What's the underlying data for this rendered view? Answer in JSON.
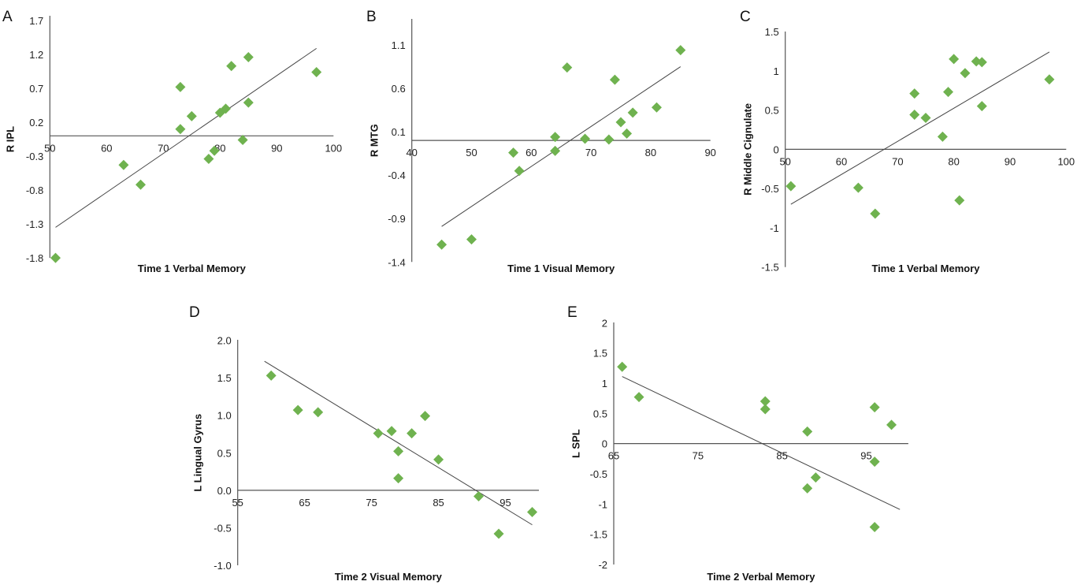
{
  "marker_color": "#6fb24f",
  "chart_data": [
    {
      "panel": "A",
      "type": "scatter",
      "xlabel": "Time 1 Verbal Memory",
      "ylabel": "R IPL",
      "xlim": [
        50,
        100
      ],
      "ylim": [
        -1.8,
        1.7
      ],
      "xticks": [
        "50",
        "60",
        "70",
        "80",
        "90",
        "100"
      ],
      "yticks": [
        "1.7",
        "1.2",
        "0.7",
        "0.2",
        "-0.3",
        "-0.8",
        "-1.3",
        "-1.8"
      ],
      "points": [
        [
          51,
          -1.8
        ],
        [
          63,
          -0.43
        ],
        [
          66,
          -0.72
        ],
        [
          73,
          0.72
        ],
        [
          73,
          0.1
        ],
        [
          75,
          0.29
        ],
        [
          78,
          -0.34
        ],
        [
          79,
          -0.22
        ],
        [
          80,
          0.34
        ],
        [
          81,
          0.4
        ],
        [
          82,
          1.03
        ],
        [
          84,
          -0.06
        ],
        [
          85,
          1.16
        ],
        [
          85,
          0.49
        ],
        [
          97,
          0.94
        ]
      ],
      "trendline": [
        [
          51,
          -1.35
        ],
        [
          97,
          1.29
        ]
      ]
    },
    {
      "panel": "B",
      "type": "scatter",
      "xlabel": "Time 1 Visual Memory",
      "ylabel": "R MTG",
      "xlim": [
        40,
        90
      ],
      "ylim": [
        -1.4,
        1.4
      ],
      "xticks": [
        "40",
        "50",
        "60",
        "70",
        "80",
        "90"
      ],
      "yticks": [
        "1.1",
        "0.6",
        "0.1",
        "-0.4",
        "-0.9",
        "-1.4"
      ],
      "points": [
        [
          45,
          -1.2
        ],
        [
          50,
          -1.14
        ],
        [
          57,
          -0.14
        ],
        [
          58,
          -0.35
        ],
        [
          64,
          0.04
        ],
        [
          64,
          -0.12
        ],
        [
          66,
          0.84
        ],
        [
          69,
          0.02
        ],
        [
          73,
          0.01
        ],
        [
          74,
          0.7
        ],
        [
          75,
          0.21
        ],
        [
          76,
          0.08
        ],
        [
          77,
          0.32
        ],
        [
          81,
          0.38
        ],
        [
          85,
          1.04
        ]
      ],
      "trendline": [
        [
          45,
          -0.99
        ],
        [
          85,
          0.85
        ]
      ]
    },
    {
      "panel": "C",
      "type": "scatter",
      "xlabel": "Time 1 Verbal Memory",
      "ylabel": "R Middle Cignulate",
      "xlim": [
        50,
        100
      ],
      "ylim": [
        -1.5,
        1.5
      ],
      "xticks": [
        "50",
        "60",
        "70",
        "80",
        "90",
        "100"
      ],
      "yticks": [
        "1.5",
        "1",
        "0.5",
        "0",
        "-0.5",
        "-1",
        "-1.5"
      ],
      "points": [
        [
          51,
          -0.47
        ],
        [
          63,
          -0.49
        ],
        [
          66,
          -0.82
        ],
        [
          73,
          0.71
        ],
        [
          73,
          0.44
        ],
        [
          75,
          0.4
        ],
        [
          78,
          0.16
        ],
        [
          79,
          0.73
        ],
        [
          80,
          1.15
        ],
        [
          82,
          0.97
        ],
        [
          81,
          -0.65
        ],
        [
          84,
          1.12
        ],
        [
          85,
          1.11
        ],
        [
          85,
          0.55
        ],
        [
          97,
          0.89
        ]
      ],
      "trendline": [
        [
          51,
          -0.7
        ],
        [
          97,
          1.24
        ]
      ]
    },
    {
      "panel": "D",
      "type": "scatter",
      "xlabel": "Time 2 Visual Memory",
      "ylabel": "L Lingual Gyrus",
      "xlim": [
        55,
        100
      ],
      "ylim": [
        -1.0,
        2.0
      ],
      "xticks": [
        "55",
        "65",
        "75",
        "85",
        "95"
      ],
      "yticks": [
        "2.0",
        "1.5",
        "1.0",
        "0.5",
        "0.0",
        "-0.5",
        "-1.0"
      ],
      "points": [
        [
          60,
          1.53
        ],
        [
          64,
          1.07
        ],
        [
          67,
          1.04
        ],
        [
          76,
          0.76
        ],
        [
          78,
          0.79
        ],
        [
          79,
          0.52
        ],
        [
          79,
          0.16
        ],
        [
          81,
          0.76
        ],
        [
          83,
          0.99
        ],
        [
          85,
          0.41
        ],
        [
          91,
          -0.08
        ],
        [
          94,
          -0.58
        ],
        [
          99,
          -0.29
        ]
      ],
      "trendline": [
        [
          59,
          1.72
        ],
        [
          99,
          -0.46
        ]
      ]
    },
    {
      "panel": "E",
      "type": "scatter",
      "xlabel": "Time 2 Verbal Memory",
      "ylabel": "L SPL",
      "xlim": [
        65,
        100
      ],
      "ylim": [
        -2,
        2
      ],
      "xticks": [
        "65",
        "75",
        "85",
        "95"
      ],
      "yticks": [
        "2",
        "1.5",
        "1",
        "0.5",
        "0",
        "-0.5",
        "-1",
        "-1.5",
        "-2"
      ],
      "points": [
        [
          66,
          1.27
        ],
        [
          68,
          0.77
        ],
        [
          83,
          0.7
        ],
        [
          83,
          0.57
        ],
        [
          88,
          0.2
        ],
        [
          88,
          -0.74
        ],
        [
          89,
          -0.56
        ],
        [
          96,
          0.6
        ],
        [
          96,
          -0.3
        ],
        [
          96,
          -1.38
        ],
        [
          98,
          0.31
        ]
      ],
      "trendline": [
        [
          66,
          1.11
        ],
        [
          99,
          -1.09
        ]
      ]
    }
  ]
}
